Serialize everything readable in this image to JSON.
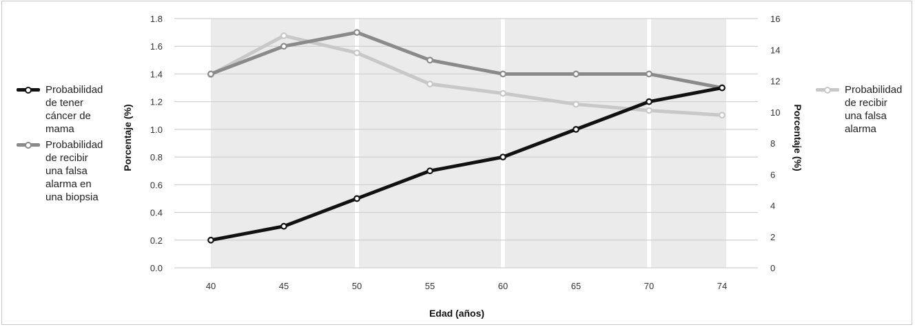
{
  "chart_data": {
    "type": "line",
    "xlabel": "Edad (años)",
    "ylabel_left": "Porcentaje (%)",
    "ylabel_right": "Porcentaje (%)",
    "x": [
      "40",
      "45",
      "50",
      "55",
      "60",
      "65",
      "70",
      "74"
    ],
    "ylim_left": [
      0,
      1.8
    ],
    "yticks_left": [
      "0.0",
      "0.2",
      "0.4",
      "0.6",
      "0.8",
      "1.0",
      "1.2",
      "1.4",
      "1.6",
      "1.8"
    ],
    "ylim_right": [
      0,
      16
    ],
    "yticks_right": [
      "0",
      "2",
      "4",
      "6",
      "8",
      "10",
      "12",
      "14",
      "16"
    ],
    "grid": true,
    "series": [
      {
        "name": "Probabilidad de tener cáncer de mama",
        "axis": "left",
        "color": "#111111",
        "values": [
          0.2,
          0.3,
          0.5,
          0.7,
          0.8,
          1.0,
          1.2,
          1.3
        ]
      },
      {
        "name": "Probabilidad de recibir una falsa alarma en una biopsia",
        "axis": "left",
        "color": "#8a8a8a",
        "values": [
          1.4,
          1.6,
          1.7,
          1.5,
          1.4,
          1.4,
          1.4,
          1.3
        ]
      },
      {
        "name": "Probabilidad de recibir una falsa alarma",
        "axis": "right",
        "color": "#c8c8c8",
        "values": [
          12.4,
          14.9,
          13.8,
          11.8,
          11.2,
          10.5,
          10.1,
          9.8
        ]
      }
    ],
    "legend": {
      "left_items": [
        {
          "label_lines": [
            "Probabilidad",
            "de tener",
            "cáncer de",
            "mama"
          ],
          "color": "#111111"
        },
        {
          "label_lines": [
            "Probabilidad",
            "de recibir",
            "una falsa",
            "alarma en",
            "una biopsia"
          ],
          "color": "#8a8a8a"
        }
      ],
      "right_items": [
        {
          "label_lines": [
            "Probabilidad",
            "de recibir",
            "una falsa",
            "alarma"
          ],
          "color": "#c8c8c8"
        }
      ],
      "placement": "left and right"
    },
    "shaded_bands": [
      [
        40,
        50
      ],
      [
        50,
        60
      ],
      [
        60,
        70
      ],
      [
        70,
        74
      ]
    ]
  }
}
